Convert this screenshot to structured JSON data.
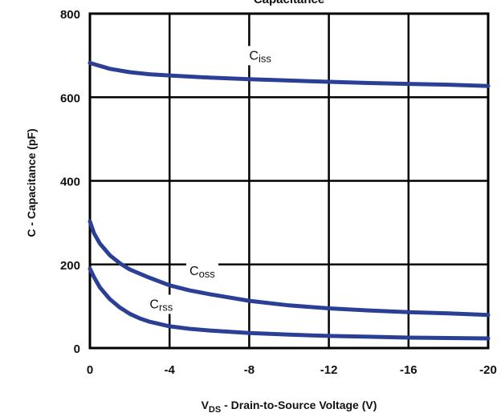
{
  "chart_data": {
    "type": "line",
    "title": "Capacitance",
    "xlabel": {
      "main": "V",
      "sub": "DS",
      "rest": " - Drain-to-Source Voltage (V)"
    },
    "ylabel": "C - Capacitance (pF)",
    "xlim": [
      0,
      -20
    ],
    "ylim": [
      0,
      800
    ],
    "xticks": [
      0,
      -4,
      -8,
      -12,
      -16,
      -20
    ],
    "xtick_labels": [
      "0",
      "-4",
      "-8",
      "-12",
      "-16",
      "-20"
    ],
    "yticks": [
      0,
      200,
      400,
      600,
      800
    ],
    "ytick_labels": [
      "0",
      "200",
      "400",
      "600",
      "800"
    ],
    "grid": true,
    "legend": "none",
    "line_color": "#2b3f97",
    "series": [
      {
        "name": "Ciss",
        "label_main": "C",
        "label_sub": "iss",
        "label_at": [
          -8,
          690
        ],
        "x": [
          0,
          -1,
          -2,
          -3,
          -4,
          -6,
          -8,
          -10,
          -12,
          -14,
          -16,
          -18,
          -20
        ],
        "y": [
          682,
          668,
          660,
          655,
          652,
          647,
          643,
          640,
          637,
          634,
          632,
          630,
          627
        ]
      },
      {
        "name": "Coss",
        "label_main": "C",
        "label_sub": "oss",
        "label_at": [
          -5,
          175
        ],
        "x": [
          0,
          -0.2,
          -0.5,
          -1,
          -1.5,
          -2,
          -3,
          -4,
          -5,
          -6,
          -8,
          -10,
          -12,
          -14,
          -16,
          -18,
          -20
        ],
        "y": [
          303,
          275,
          250,
          222,
          203,
          188,
          168,
          150,
          138,
          129,
          113,
          102,
          95,
          90,
          86,
          83,
          79
        ]
      },
      {
        "name": "Crss",
        "label_main": "C",
        "label_sub": "rss",
        "label_at": [
          -3,
          95
        ],
        "x": [
          0,
          -0.2,
          -0.5,
          -1,
          -1.5,
          -2,
          -2.5,
          -3,
          -4,
          -5,
          -6,
          -8,
          -10,
          -12,
          -14,
          -16,
          -18,
          -20
        ],
        "y": [
          190,
          170,
          145,
          117,
          97,
          82,
          71,
          63,
          52,
          46,
          42,
          36,
          32,
          29,
          27,
          25,
          24,
          23
        ]
      }
    ]
  }
}
